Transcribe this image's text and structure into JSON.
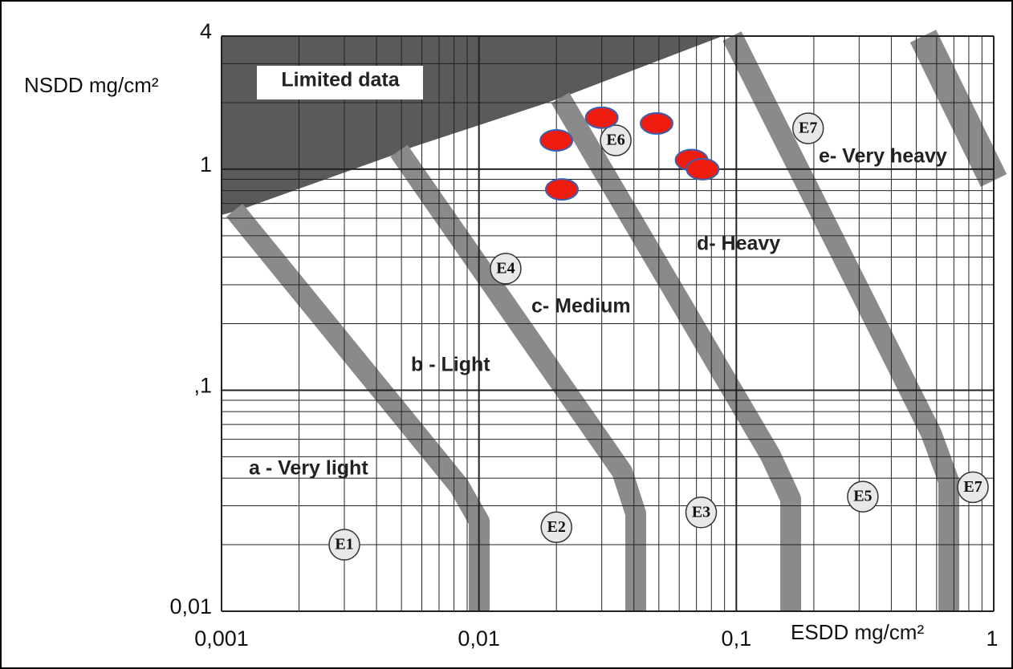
{
  "chart_data": {
    "type": "scatter",
    "x_label": "ESDD mg/cm²",
    "y_label": "NSDD mg/cm²",
    "log_x": true,
    "log_y": true,
    "grid": true,
    "xlim": [
      0.001,
      1
    ],
    "ylim": [
      0.01,
      4
    ],
    "xticks": [
      {
        "value": 0.001,
        "label": "0,001"
      },
      {
        "value": 0.01,
        "label": "0,01"
      },
      {
        "value": 0.1,
        "label": "0,1"
      },
      1
    ],
    "yticks": [
      {
        "value": 0.01,
        "label": "0,01"
      },
      {
        "value": 0.1,
        "label": ",1"
      },
      1,
      4
    ],
    "points": {
      "color": "#ee1c0e",
      "edge": "#3a5fb0",
      "x": [
        0.02,
        0.03,
        0.049,
        0.067,
        0.074,
        0.021
      ],
      "y": [
        1.35,
        1.71,
        1.61,
        1.1,
        1.0,
        0.81
      ]
    },
    "markers": [
      {
        "label": "E1",
        "x": 0.003,
        "y": 0.02
      },
      {
        "label": "E2",
        "x": 0.02,
        "y": 0.024
      },
      {
        "label": "E3",
        "x": 0.073,
        "y": 0.028
      },
      {
        "label": "E4",
        "x": 0.0127,
        "y": 0.355
      },
      {
        "label": "E5",
        "x": 0.31,
        "y": 0.033
      },
      {
        "label": "E6",
        "x": 0.034,
        "y": 1.35
      },
      {
        "label": "E7",
        "x": 0.19,
        "y": 1.53
      },
      {
        "label": "E7",
        "x": 0.83,
        "y": 0.0364
      }
    ],
    "annotations": [
      "Limited data",
      "a - Very light",
      "b - Light",
      "c- Medium",
      "d- Heavy",
      "e- Very heavy"
    ]
  }
}
